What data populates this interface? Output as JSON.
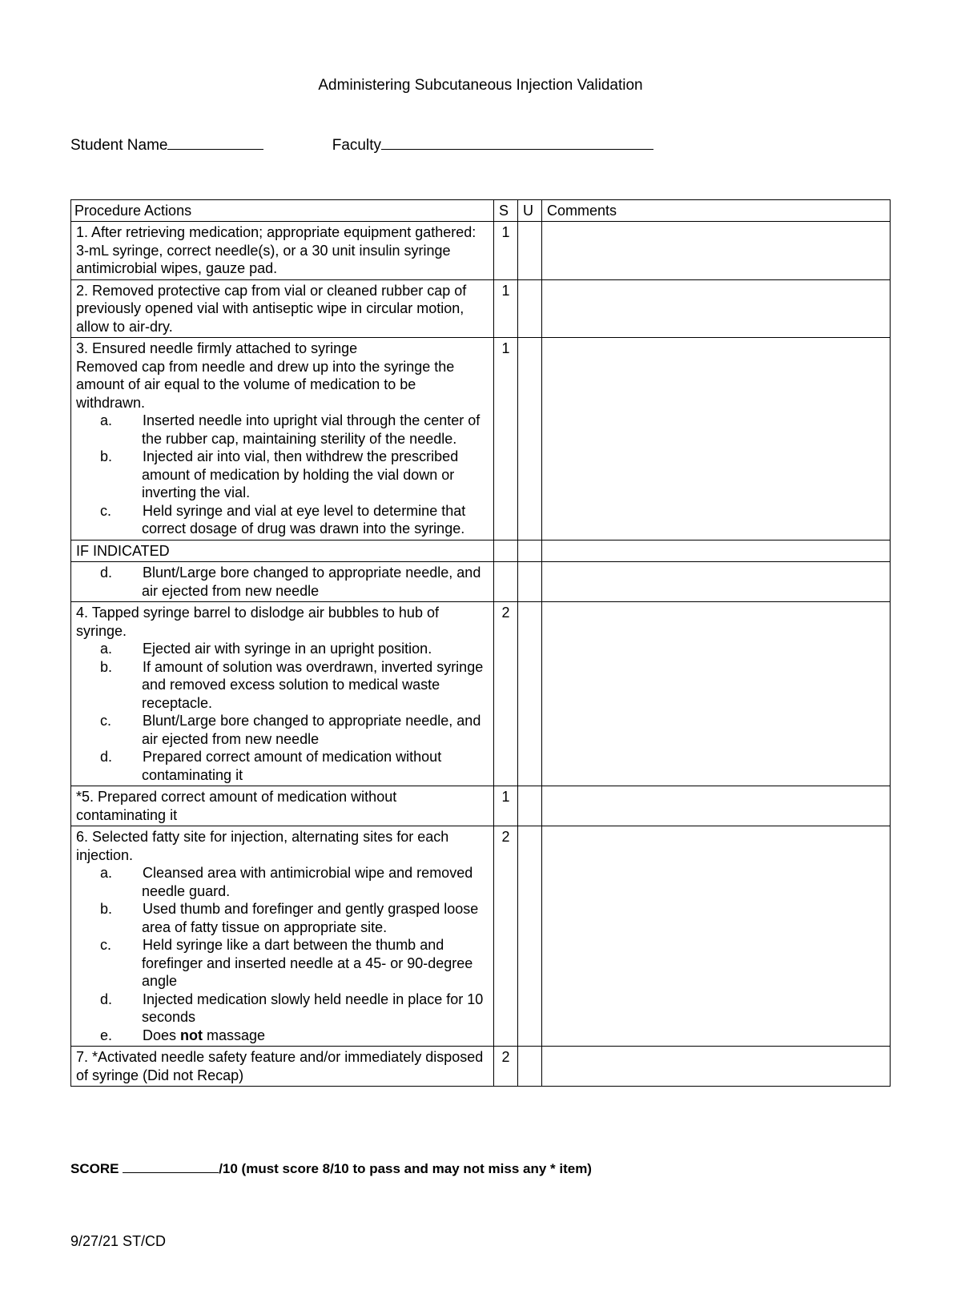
{
  "title": "Administering Subcutaneous Injection Validation",
  "header": {
    "student_label": "Student Name",
    "faculty_label": "Faculty"
  },
  "table": {
    "headers": {
      "actions": "Procedure Actions",
      "s": "S",
      "u": "U",
      "comments": "Comments"
    },
    "rows": [
      {
        "text": "1.  After retrieving medication; appropriate equipment gathered: 3-mL syringe, correct needle(s), or a 30 unit insulin syringe antimicrobial wipes, gauze pad.",
        "s": "1",
        "pad_bottom": true
      },
      {
        "text": " 2.  Removed protective cap from vial or cleaned rubber cap of previously opened vial with antiseptic wipe in circular motion, allow to air-dry.",
        "s": "1"
      },
      {
        "text": "3.  Ensured needle firmly attached to syringe\nRemoved cap from needle and drew up into the syringe the amount of air equal to the volume of medication to be withdrawn.",
        "s": "1",
        "sub": [
          "Inserted needle into upright vial through the center of the rubber cap, maintaining sterility of the needle.",
          "Injected air into vial, then withdrew the prescribed amount of medication by holding the vial down or inverting the vial.",
          "Held syringe and vial at eye level to determine that correct dosage of drug was drawn into the syringe."
        ],
        "sub_markers": [
          "a.",
          "b.",
          "c."
        ]
      },
      {
        "if_indicated": "IF INDICATED"
      },
      {
        "text": "",
        "pad_top": true,
        "sub": [
          "Blunt/Large bore changed to appropriate needle, and air ejected from new needle"
        ],
        "sub_markers": [
          "d."
        ]
      },
      {
        "text": "4.  Tapped syringe barrel to dislodge air bubbles to hub of syringe.",
        "s": "2",
        "sub": [
          "Ejected air with syringe in an upright position.",
          "If amount of solution was overdrawn, inverted syringe and removed excess solution to medical waste receptacle.",
          "Blunt/Large bore changed to appropriate needle, and air ejected from new needle",
          "Prepared correct amount of medication without contaminating it"
        ],
        "sub_markers": [
          "a.",
          "b.",
          "c.",
          "d."
        ]
      },
      {
        "text": "*5.  Prepared correct amount of medication without contaminating it",
        "s": "1",
        "pad_bottom": true
      },
      {
        "text": "6. Selected fatty site for injection, alternating sites for each injection.",
        "s": "2",
        "sub": [
          "Cleansed area with antimicrobial wipe and removed needle guard.",
          "Used thumb and forefinger and gently grasped loose area of fatty tissue on appropriate site.",
          "Held syringe like a dart between the thumb and forefinger and inserted needle at a 45- or 90-degree angle",
          "Injected medication slowly held needle in place for 10 seconds",
          "Does <b>not</b> massage"
        ],
        "sub_markers": [
          "a.",
          "b.",
          "c.",
          "d.",
          "e."
        ]
      },
      {
        "text": "7. *Activated needle safety feature and/or immediately disposed of syringe (Did not Recap)",
        "s": "2",
        "pad_bottom": true
      }
    ]
  },
  "score": {
    "prefix": "SCORE ",
    "suffix": "/10 (must score 8/10 to pass and may not miss any * item)"
  },
  "footer": "9/27/21 ST/CD"
}
